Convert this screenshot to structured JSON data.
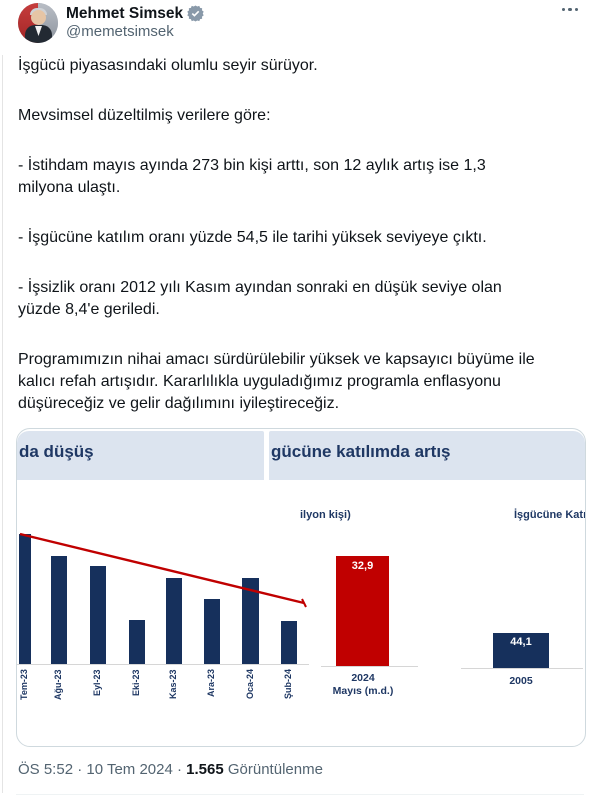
{
  "header": {
    "display_name": "Mehmet Simsek",
    "handle": "@memetsimsek",
    "verified_badge": "gray-government-check",
    "badge_color": "#8999a9"
  },
  "tweet": {
    "paragraphs": [
      "İşgücü piyasasındaki olumlu seyir sürüyor.",
      "Mevsimsel düzeltilmiş verilere göre:",
      "- İstihdam mayıs ayında 273 bin kişi arttı, son 12 aylık artış ise 1,3\nmilyona ulaştı.",
      "- İşgücüne katılım oranı yüzde 54,5 ile tarihi yüksek seviyeye çıktı.",
      "- İşsizlik oranı 2012 yılı Kasım ayından sonraki en düşük seviye olan\nyüzde 8,4'e geriledi.",
      "Programımızın nihai amacı sürdürülebilir yüksek ve kapsayıcı büyüme ile\nkalıcı refah artışıdır. Kararlılıkla uyguladığımız programla enflasyonu\ndüşüreceğiz ve gelir dağılımını iyileştireceğiz."
    ]
  },
  "attachment": {
    "left_panel_title": "da düşüş",
    "right_panel_title": "gücüne katılımda artış",
    "left_axis_note": "ilyon kişi)",
    "right_axis_note": "İşgücüne Katılım"
  },
  "chart_data": [
    {
      "type": "bar",
      "title": "da düşüş (cropped panel header)",
      "categories": [
        "Tem-23",
        "Ağu-23",
        "Eyl-23",
        "Eki-23",
        "Kas-23",
        "Ara-23",
        "Oca-24",
        "Şub-24"
      ],
      "values_relative_pct": [
        100,
        83,
        75,
        34,
        66,
        50,
        66,
        33
      ],
      "ylabel": "",
      "grid": false,
      "bar_color": "#16305c",
      "trendline": {
        "color": "#c00000",
        "direction": "declining"
      }
    },
    {
      "type": "bar",
      "title": "ilyon kişi) (cropped '(milyon kişi)')",
      "categories": [
        "2024 Mayıs (m.d.)"
      ],
      "values": [
        32.9
      ],
      "data_labels": [
        "32,9"
      ],
      "bar_color": "#c00000",
      "xlabel_line1": "2024",
      "xlabel_line2": "Mayıs (m.d.)"
    },
    {
      "type": "bar",
      "title": "İşgücüne Katılım (cropped header)",
      "categories": [
        "2005"
      ],
      "values": [
        44.1
      ],
      "data_labels": [
        "44,1"
      ],
      "bar_color": "#16305c",
      "xlabel": "2005"
    }
  ],
  "footer": {
    "meta_prefix": "ÖS 5:52 · 10 Tem 2024 · ",
    "views_count": "1.565",
    "views_label": " Görüntülenme"
  },
  "colors": {
    "navy_text": "#1f3864",
    "bar_navy": "#16305c",
    "red": "#c00000",
    "header_band": "#dce4ef",
    "card_border": "#cfd9de",
    "meta_gray": "#536471",
    "body_text": "#0f1419"
  }
}
